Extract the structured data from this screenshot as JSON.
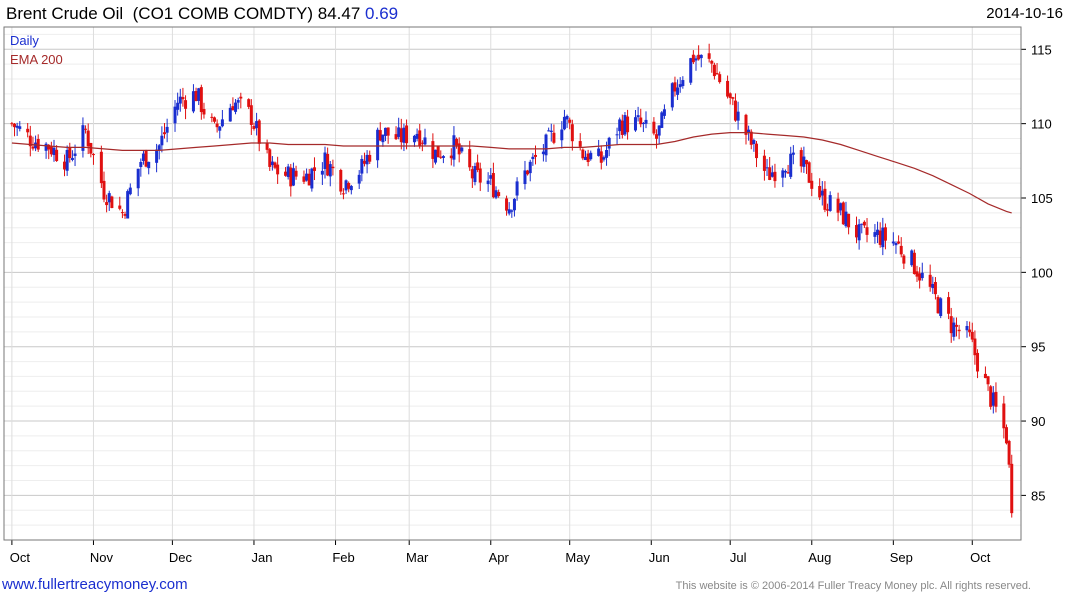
{
  "header": {
    "name": "Brent Crude Oil",
    "ticker": "(CO1 COMB COMDTY)",
    "price": "84.47",
    "change": "0.69",
    "date": "2014-10-16"
  },
  "legend": {
    "daily": "Daily",
    "ema": "EMA 200"
  },
  "footer": {
    "link": "www.fullertreacymoney.com",
    "copyright": "This website is © 2006-2014 Fuller Treacy Money plc. All rights reserved."
  },
  "colors": {
    "up": "#1a2ecf",
    "down": "#e01010",
    "ema": "#a52a2a",
    "grid": "#cccccc"
  },
  "chart_data": {
    "type": "line",
    "series_style": "candlestick",
    "y_ticks": [
      85,
      90,
      95,
      100,
      105,
      110,
      115
    ],
    "ylim": [
      82,
      116.5
    ],
    "x_ticks": [
      "Oct",
      "Nov",
      "Dec",
      "Jan",
      "Feb",
      "Mar",
      "Apr",
      "May",
      "Jun",
      "Jul",
      "Aug",
      "Sep",
      "Oct"
    ],
    "x_tick_dates": [
      "2013-10-01",
      "2013-11-01",
      "2013-12-01",
      "2014-01-01",
      "2014-02-01",
      "2014-03-01",
      "2014-04-01",
      "2014-05-01",
      "2014-06-01",
      "2014-07-01",
      "2014-08-01",
      "2014-09-01",
      "2014-10-01"
    ],
    "series": [
      {
        "name": "Daily",
        "x": [
          "2013-10-01",
          "2013-10-08",
          "2013-10-15",
          "2013-10-22",
          "2013-10-29",
          "2013-11-05",
          "2013-11-12",
          "2013-11-19",
          "2013-11-26",
          "2013-12-03",
          "2013-12-10",
          "2013-12-17",
          "2013-12-24",
          "2013-12-31",
          "2014-01-07",
          "2014-01-14",
          "2014-01-21",
          "2014-01-28",
          "2014-02-04",
          "2014-02-11",
          "2014-02-18",
          "2014-02-25",
          "2014-03-04",
          "2014-03-11",
          "2014-03-18",
          "2014-03-25",
          "2014-04-01",
          "2014-04-08",
          "2014-04-15",
          "2014-04-22",
          "2014-04-29",
          "2014-05-06",
          "2014-05-13",
          "2014-05-20",
          "2014-05-27",
          "2014-06-03",
          "2014-06-10",
          "2014-06-17",
          "2014-06-24",
          "2014-07-01",
          "2014-07-08",
          "2014-07-15",
          "2014-07-22",
          "2014-07-29",
          "2014-08-05",
          "2014-08-12",
          "2014-08-19",
          "2014-08-26",
          "2014-09-02",
          "2014-09-09",
          "2014-09-16",
          "2014-09-23",
          "2014-09-30",
          "2014-10-07",
          "2014-10-14",
          "2014-10-16"
        ],
        "close": [
          110.0,
          109.0,
          108.5,
          107.5,
          109.5,
          105.5,
          104.0,
          107.5,
          108.5,
          111.5,
          112.0,
          109.5,
          111.5,
          110.5,
          107.0,
          106.5,
          106.5,
          107.5,
          106.0,
          107.0,
          109.5,
          109.0,
          109.5,
          108.0,
          108.5,
          106.5,
          106.0,
          104.5,
          107.0,
          108.5,
          110.5,
          108.0,
          107.5,
          110.0,
          110.0,
          109.0,
          112.5,
          114.5,
          114.0,
          111.5,
          109.0,
          106.5,
          107.5,
          107.0,
          105.0,
          104.0,
          102.5,
          102.5,
          102.0,
          100.5,
          98.5,
          96.5,
          95.5,
          92.0,
          89.0,
          84.5
        ],
        "ema200": [
          108.7,
          108.6,
          108.5,
          108.4,
          108.4,
          108.3,
          108.2,
          108.2,
          108.2,
          108.3,
          108.4,
          108.5,
          108.6,
          108.7,
          108.7,
          108.6,
          108.6,
          108.6,
          108.5,
          108.5,
          108.5,
          108.5,
          108.5,
          108.5,
          108.5,
          108.5,
          108.4,
          108.3,
          108.3,
          108.3,
          108.4,
          108.4,
          108.5,
          108.6,
          108.6,
          108.6,
          108.8,
          109.1,
          109.3,
          109.4,
          109.4,
          109.3,
          109.2,
          109.1,
          108.9,
          108.6,
          108.2,
          107.8,
          107.4,
          107.0,
          106.5,
          105.9,
          105.3,
          104.6,
          104.1,
          104.0
        ]
      }
    ]
  }
}
